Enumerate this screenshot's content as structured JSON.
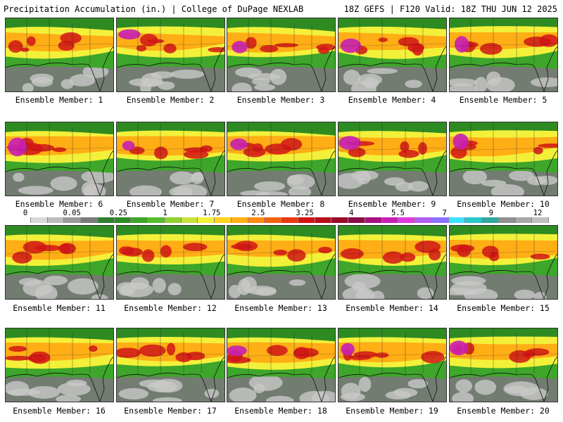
{
  "header": {
    "title": "Precipitation Accumulation (in.) | College of DuPage NEXLAB",
    "run_info": "18Z GEFS | F120 Valid: 18Z THU JUN 12 2025"
  },
  "members": [
    {
      "label": "Ensemble Member: 1"
    },
    {
      "label": "Ensemble Member: 2"
    },
    {
      "label": "Ensemble Member: 3"
    },
    {
      "label": "Ensemble Member: 4"
    },
    {
      "label": "Ensemble Member: 5"
    },
    {
      "label": "Ensemble Member: 6"
    },
    {
      "label": "Ensemble Member: 7"
    },
    {
      "label": "Ensemble Member: 8"
    },
    {
      "label": "Ensemble Member: 9"
    },
    {
      "label": "Ensemble Member: 10"
    },
    {
      "label": "Ensemble Member: 11"
    },
    {
      "label": "Ensemble Member: 12"
    },
    {
      "label": "Ensemble Member: 13"
    },
    {
      "label": "Ensemble Member: 14"
    },
    {
      "label": "Ensemble Member: 15"
    },
    {
      "label": "Ensemble Member: 16"
    },
    {
      "label": "Ensemble Member: 17"
    },
    {
      "label": "Ensemble Member: 18"
    },
    {
      "label": "Ensemble Member: 19"
    },
    {
      "label": "Ensemble Member: 20"
    }
  ],
  "colorbar": {
    "labels": [
      "0",
      "0.05",
      "0.25",
      "1",
      "1.75",
      "2.5",
      "3.25",
      "4",
      "5.5",
      "7",
      "9",
      "12"
    ],
    "colors": [
      "#ffffff",
      "#d9d9d9",
      "#bdbdbd",
      "#9a9a9a",
      "#7a7a7a",
      "#2f7f2f",
      "#2e8b22",
      "#3ea62a",
      "#56bd2d",
      "#8fd22e",
      "#c8e03a",
      "#f3f03a",
      "#ffd21e",
      "#ffae15",
      "#ff8a10",
      "#f2620e",
      "#e63b10",
      "#d01515",
      "#b80d1c",
      "#9a0b2a",
      "#8c0c48",
      "#a80f80",
      "#c81fb4",
      "#e03adf",
      "#b060f0",
      "#8c70ff",
      "#40e0ff",
      "#28c8c8",
      "#30a8a0",
      "#909090",
      "#a8a8a8",
      "#c0c0c0"
    ]
  },
  "map_colors": {
    "gray_dark": "#7a7a7a",
    "gray_light": "#c8c8c8",
    "green": "#2e8b22",
    "yellow": "#f3f03a",
    "orange": "#ffae15",
    "red": "#d01515",
    "magenta": "#c81fb4"
  }
}
